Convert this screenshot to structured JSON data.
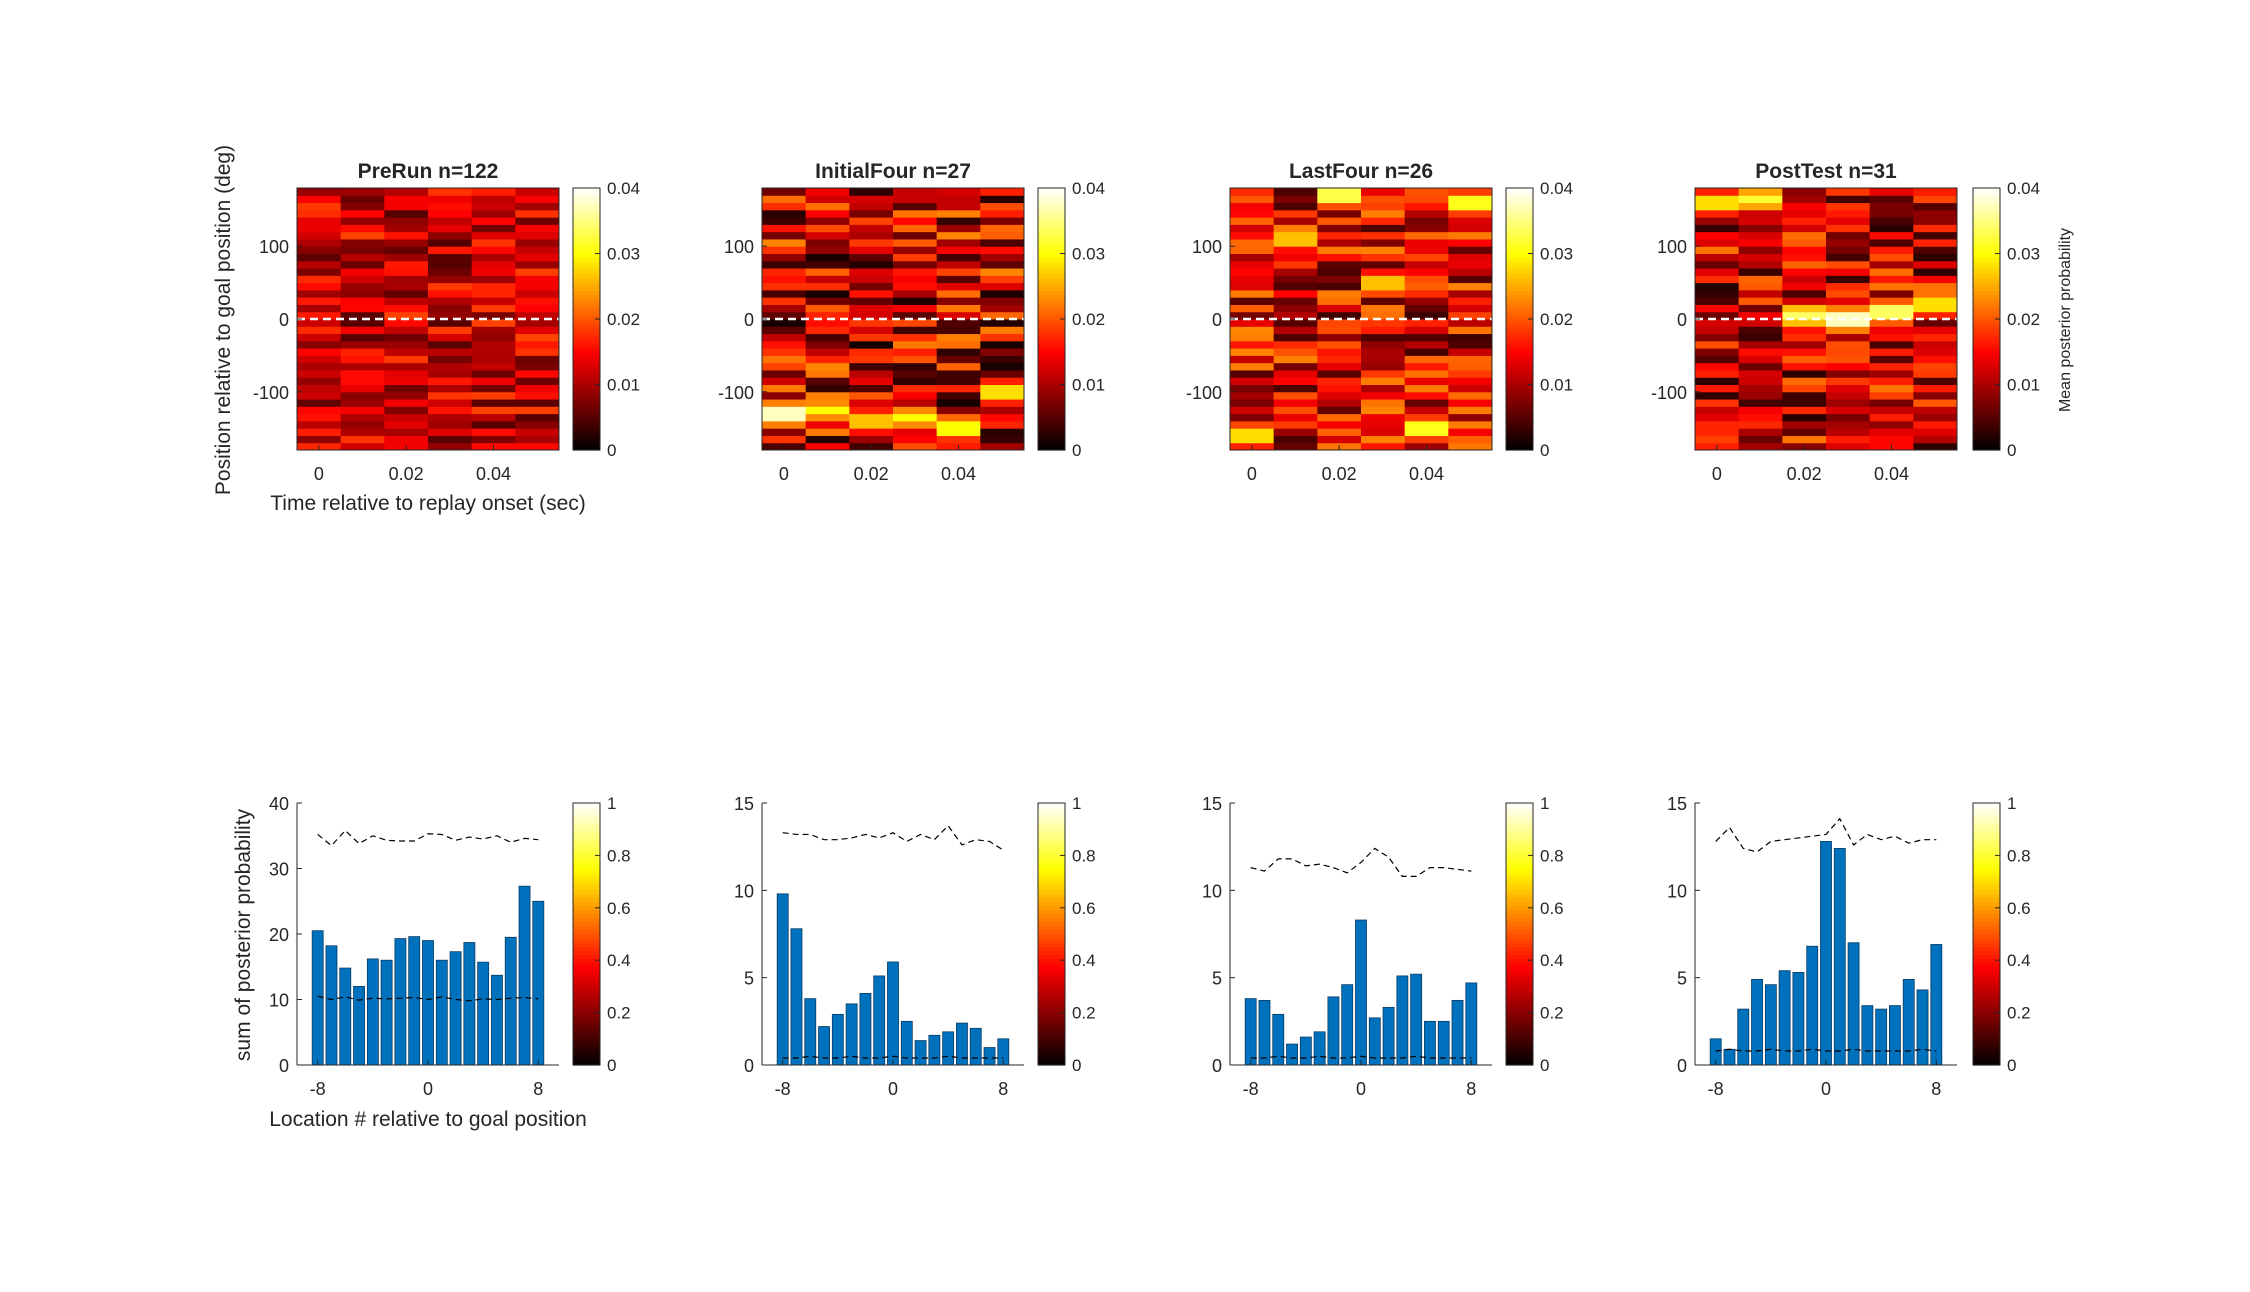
{
  "figure": {
    "top_ylabel": "Position relative to goal position (deg)",
    "top_xlabel": "Time relative to replay onset (sec)",
    "top_colorbar_label": "Mean posterior probability",
    "bottom_ylabel": "sum of posterior probability",
    "bottom_xlabel": "Location # relative to goal position"
  },
  "colors": {
    "bar": "#0072BD",
    "bar_edge": "#0a3a63",
    "axis": "#262626",
    "goal_line": "#ffffff"
  },
  "chart_data": [
    {
      "type": "heatmap",
      "panel": "top-1",
      "title": "PreRun n=122",
      "x_range": [
        -0.005,
        0.055
      ],
      "y_range": [
        -180,
        180
      ],
      "xticks": [
        0,
        0.02,
        0.04
      ],
      "xtick_labels": [
        "0",
        "0.02",
        "0.04"
      ],
      "yticks": [
        100,
        0,
        -100
      ],
      "ytick_labels": [
        "100",
        "0",
        "-100"
      ],
      "time_bins": [
        0,
        0.01,
        0.02,
        0.03,
        0.04,
        0.05
      ],
      "position_bins": 36,
      "goal_line_y": 0,
      "colormap": "hot",
      "clim": [
        0,
        0.04
      ],
      "colorbar_ticks": [
        0,
        0.01,
        0.02,
        0.03,
        0.04
      ],
      "colorbar_tick_labels": [
        "0",
        "0.01",
        "0.02",
        "0.03",
        "0.04"
      ],
      "mean_level": 0.012,
      "variability": 0.007,
      "hot_spots": []
    },
    {
      "type": "heatmap",
      "panel": "top-2",
      "title": "InitialFour n=27",
      "x_range": [
        -0.005,
        0.055
      ],
      "y_range": [
        -180,
        180
      ],
      "xticks": [
        0,
        0.02,
        0.04
      ],
      "xtick_labels": [
        "0",
        "0.02",
        "0.04"
      ],
      "yticks": [
        100,
        0,
        -100
      ],
      "ytick_labels": [
        "100",
        "0",
        "-100"
      ],
      "time_bins": [
        0,
        0.01,
        0.02,
        0.03,
        0.04,
        0.05
      ],
      "position_bins": 36,
      "goal_line_y": 0,
      "colormap": "hot",
      "clim": [
        0,
        0.04
      ],
      "colorbar_ticks": [
        0,
        0.01,
        0.02,
        0.03,
        0.04
      ],
      "colorbar_tick_labels": [
        "0",
        "0.01",
        "0.02",
        "0.03",
        "0.04"
      ],
      "mean_level": 0.012,
      "variability": 0.011,
      "hot_spots": [
        {
          "time": 0.0,
          "position": -130,
          "value": 0.04
        },
        {
          "time": 0.01,
          "position": -125,
          "value": 0.03
        },
        {
          "time": 0.02,
          "position": -140,
          "value": 0.028
        },
        {
          "time": 0.03,
          "position": -135,
          "value": 0.03
        },
        {
          "time": 0.04,
          "position": -150,
          "value": 0.032
        },
        {
          "time": 0.05,
          "position": -100,
          "value": 0.03
        }
      ]
    },
    {
      "type": "heatmap",
      "panel": "top-3",
      "title": "LastFour n=26",
      "x_range": [
        -0.005,
        0.055
      ],
      "y_range": [
        -180,
        180
      ],
      "xticks": [
        0,
        0.02,
        0.04
      ],
      "xtick_labels": [
        "0",
        "0.02",
        "0.04"
      ],
      "yticks": [
        100,
        0,
        -100
      ],
      "ytick_labels": [
        "100",
        "0",
        "-100"
      ],
      "time_bins": [
        0,
        0.01,
        0.02,
        0.03,
        0.04,
        0.05
      ],
      "position_bins": 36,
      "goal_line_y": 0,
      "colormap": "hot",
      "clim": [
        0,
        0.04
      ],
      "colorbar_ticks": [
        0,
        0.01,
        0.02,
        0.03,
        0.04
      ],
      "colorbar_tick_labels": [
        "0",
        "0.01",
        "0.02",
        "0.03",
        "0.04"
      ],
      "mean_level": 0.013,
      "variability": 0.01,
      "hot_spots": [
        {
          "time": 0.02,
          "position": 170,
          "value": 0.035
        },
        {
          "time": 0.05,
          "position": 160,
          "value": 0.033
        },
        {
          "time": 0.01,
          "position": 110,
          "value": 0.028
        },
        {
          "time": 0.03,
          "position": 50,
          "value": 0.028
        },
        {
          "time": 0.04,
          "position": -150,
          "value": 0.033
        },
        {
          "time": 0.0,
          "position": -160,
          "value": 0.03
        }
      ]
    },
    {
      "type": "heatmap",
      "panel": "top-4",
      "title": "PostTest n=31",
      "x_range": [
        -0.005,
        0.055
      ],
      "y_range": [
        -180,
        180
      ],
      "xticks": [
        0,
        0.02,
        0.04
      ],
      "xtick_labels": [
        "0",
        "0.02",
        "0.04"
      ],
      "yticks": [
        100,
        0,
        -100
      ],
      "ytick_labels": [
        "100",
        "0",
        "-100"
      ],
      "time_bins": [
        0,
        0.01,
        0.02,
        0.03,
        0.04,
        0.05
      ],
      "position_bins": 36,
      "goal_line_y": 0,
      "colormap": "hot",
      "clim": [
        0,
        0.04
      ],
      "colorbar_ticks": [
        0,
        0.01,
        0.02,
        0.03,
        0.04
      ],
      "colorbar_tick_labels": [
        "0",
        "0.01",
        "0.02",
        "0.03",
        "0.04"
      ],
      "mean_level": 0.012,
      "variability": 0.01,
      "hot_spots": [
        {
          "time": 0.03,
          "position": 0,
          "value": 0.04
        },
        {
          "time": 0.02,
          "position": 5,
          "value": 0.034
        },
        {
          "time": 0.04,
          "position": 10,
          "value": 0.036
        },
        {
          "time": 0.05,
          "position": 20,
          "value": 0.03
        },
        {
          "time": 0.0,
          "position": 160,
          "value": 0.03
        },
        {
          "time": 0.01,
          "position": 165,
          "value": 0.032
        }
      ]
    },
    {
      "type": "bar",
      "panel": "bottom-1",
      "x": [
        -8,
        -7,
        -6,
        -5,
        -4,
        -3,
        -2,
        -1,
        0,
        1,
        2,
        3,
        4,
        5,
        6,
        7,
        8
      ],
      "values": [
        20.5,
        18.2,
        14.8,
        12.0,
        16.2,
        16.0,
        19.3,
        19.6,
        19.0,
        16.0,
        17.3,
        18.7,
        15.7,
        13.7,
        19.5,
        27.3,
        25.0
      ],
      "upper_dashed": [
        35.2,
        33.5,
        35.8,
        33.8,
        35.0,
        34.3,
        34.2,
        34.2,
        35.3,
        35.2,
        34.3,
        34.8,
        34.5,
        35.0,
        34.0,
        34.6,
        34.4
      ],
      "lower_dashed": [
        10.5,
        10.0,
        10.4,
        9.9,
        10.2,
        10.1,
        10.2,
        10.3,
        10.0,
        10.4,
        10.0,
        9.8,
        10.1,
        10.0,
        10.2,
        10.3,
        10.1
      ],
      "x_range": [
        -9.5,
        9.5
      ],
      "ylim": [
        0,
        40
      ],
      "xticks": [
        -8,
        0,
        8
      ],
      "xtick_labels": [
        "-8",
        "0",
        "8"
      ],
      "yticks": [
        0,
        10,
        20,
        30,
        40
      ],
      "ytick_labels": [
        "0",
        "10",
        "20",
        "30",
        "40"
      ],
      "colorbar_ticks": [
        0,
        0.2,
        0.4,
        0.6,
        0.8,
        1
      ],
      "colorbar_tick_labels": [
        "0",
        "0.2",
        "0.4",
        "0.6",
        "0.8",
        "1"
      ]
    },
    {
      "type": "bar",
      "panel": "bottom-2",
      "x": [
        -8,
        -7,
        -6,
        -5,
        -4,
        -3,
        -2,
        -1,
        0,
        1,
        2,
        3,
        4,
        5,
        6,
        7,
        8
      ],
      "values": [
        9.8,
        7.8,
        3.8,
        2.2,
        2.9,
        3.5,
        4.1,
        5.1,
        5.9,
        2.5,
        1.4,
        1.7,
        1.9,
        2.4,
        2.1,
        1.0,
        1.5
      ],
      "upper_dashed": [
        13.3,
        13.2,
        13.2,
        12.9,
        12.9,
        13.0,
        13.2,
        13.0,
        13.3,
        12.8,
        13.2,
        12.9,
        13.7,
        12.6,
        12.9,
        12.8,
        12.3
      ],
      "lower_dashed": [
        0.4,
        0.4,
        0.5,
        0.4,
        0.4,
        0.5,
        0.4,
        0.4,
        0.5,
        0.4,
        0.4,
        0.4,
        0.5,
        0.4,
        0.4,
        0.4,
        0.4
      ],
      "x_range": [
        -9.5,
        9.5
      ],
      "ylim": [
        0,
        15
      ],
      "xticks": [
        -8,
        0,
        8
      ],
      "xtick_labels": [
        "-8",
        "0",
        "8"
      ],
      "yticks": [
        0,
        5,
        10,
        15
      ],
      "ytick_labels": [
        "0",
        "5",
        "10",
        "15"
      ],
      "colorbar_ticks": [
        0,
        0.2,
        0.4,
        0.6,
        0.8,
        1
      ],
      "colorbar_tick_labels": [
        "0",
        "0.2",
        "0.4",
        "0.6",
        "0.8",
        "1"
      ]
    },
    {
      "type": "bar",
      "panel": "bottom-3",
      "x": [
        -8,
        -7,
        -6,
        -5,
        -4,
        -3,
        -2,
        -1,
        0,
        1,
        2,
        3,
        4,
        5,
        6,
        7,
        8
      ],
      "values": [
        3.8,
        3.7,
        2.9,
        1.2,
        1.6,
        1.9,
        3.9,
        4.6,
        8.3,
        2.7,
        3.3,
        5.1,
        5.2,
        2.5,
        2.5,
        3.7,
        4.7
      ],
      "upper_dashed": [
        11.3,
        11.1,
        11.8,
        11.8,
        11.4,
        11.5,
        11.3,
        11.0,
        11.6,
        12.4,
        11.9,
        10.8,
        10.8,
        11.3,
        11.3,
        11.2,
        11.1
      ],
      "lower_dashed": [
        0.4,
        0.4,
        0.5,
        0.4,
        0.4,
        0.5,
        0.4,
        0.4,
        0.5,
        0.4,
        0.4,
        0.4,
        0.5,
        0.4,
        0.4,
        0.4,
        0.4
      ],
      "x_range": [
        -9.5,
        9.5
      ],
      "ylim": [
        0,
        15
      ],
      "xticks": [
        -8,
        0,
        8
      ],
      "xtick_labels": [
        "-8",
        "0",
        "8"
      ],
      "yticks": [
        0,
        5,
        10,
        15
      ],
      "ytick_labels": [
        "0",
        "5",
        "10",
        "15"
      ],
      "colorbar_ticks": [
        0,
        0.2,
        0.4,
        0.6,
        0.8,
        1
      ],
      "colorbar_tick_labels": [
        "0",
        "0.2",
        "0.4",
        "0.6",
        "0.8",
        "1"
      ]
    },
    {
      "type": "bar",
      "panel": "bottom-4",
      "x": [
        -8,
        -7,
        -6,
        -5,
        -4,
        -3,
        -2,
        -1,
        0,
        1,
        2,
        3,
        4,
        5,
        6,
        7,
        8
      ],
      "values": [
        1.5,
        0.9,
        3.2,
        4.9,
        4.6,
        5.4,
        5.3,
        6.8,
        12.8,
        12.4,
        7.0,
        3.4,
        3.2,
        3.4,
        4.9,
        4.3,
        6.9
      ],
      "upper_dashed": [
        12.8,
        13.6,
        12.4,
        12.2,
        12.8,
        12.9,
        13.0,
        13.1,
        13.2,
        14.1,
        12.6,
        13.2,
        12.9,
        13.1,
        12.7,
        12.9,
        12.9
      ],
      "lower_dashed": [
        0.8,
        0.9,
        0.8,
        0.8,
        0.9,
        0.8,
        0.8,
        0.9,
        0.8,
        0.8,
        0.9,
        0.8,
        0.8,
        0.8,
        0.8,
        0.9,
        0.8
      ],
      "x_range": [
        -9.5,
        9.5
      ],
      "ylim": [
        0,
        15
      ],
      "xticks": [
        -8,
        0,
        8
      ],
      "xtick_labels": [
        "-8",
        "0",
        "8"
      ],
      "yticks": [
        0,
        5,
        10,
        15
      ],
      "ytick_labels": [
        "0",
        "5",
        "10",
        "15"
      ],
      "colorbar_ticks": [
        0,
        0.2,
        0.4,
        0.6,
        0.8,
        1
      ],
      "colorbar_tick_labels": [
        "0",
        "0.2",
        "0.4",
        "0.6",
        "0.8",
        "1"
      ]
    }
  ]
}
